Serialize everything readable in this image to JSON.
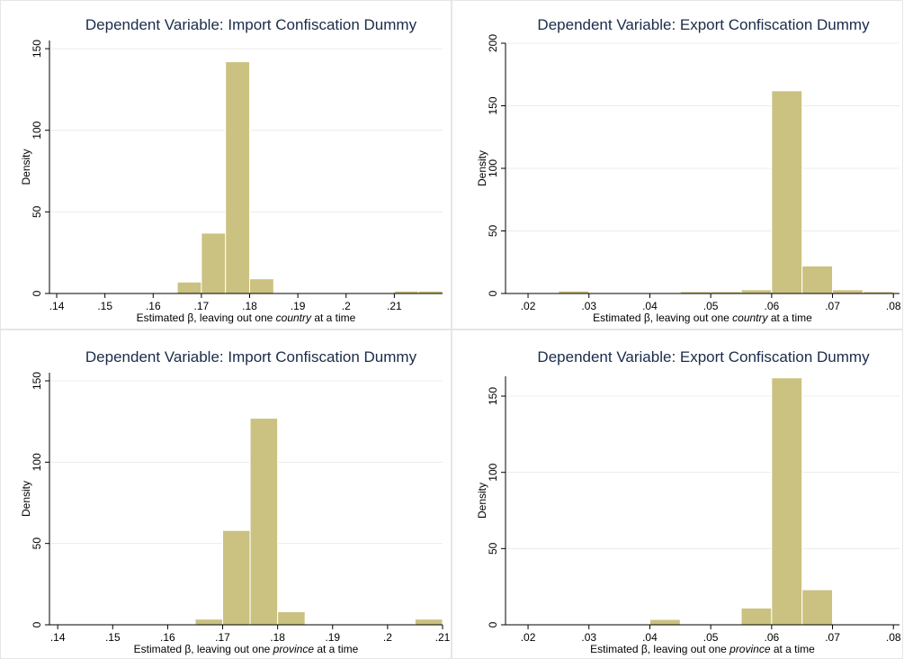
{
  "chart_data": [
    {
      "type": "histogram",
      "title": "Dependent Variable: Import Confiscation Dummy",
      "xlabel": [
        "Estimated β, leaving out one ",
        "country",
        " at a time"
      ],
      "ylabel": "Density",
      "bins": [
        0.165,
        0.17,
        0.175,
        0.18,
        0.185,
        0.19,
        0.195,
        0.2,
        0.205,
        0.21,
        0.215,
        0.22
      ],
      "values": [
        7,
        37,
        142,
        9,
        0,
        0,
        0,
        0,
        0,
        1.5,
        1.5
      ],
      "color": "#cbc180",
      "xlim": [
        0.1385,
        0.22
      ],
      "ylim": [
        0,
        155
      ],
      "xticks": [
        {
          "value": 0.14,
          "label": ".14"
        },
        {
          "value": 0.15,
          "label": ".15"
        },
        {
          "value": 0.16,
          "label": ".16"
        },
        {
          "value": 0.17,
          "label": ".17"
        },
        {
          "value": 0.18,
          "label": ".18"
        },
        {
          "value": 0.19,
          "label": ".19"
        },
        {
          "value": 0.2,
          "label": ".2"
        },
        {
          "value": 0.21,
          "label": ".21"
        }
      ],
      "yticks": [
        0,
        50,
        100,
        150
      ],
      "grid": true
    },
    {
      "type": "histogram",
      "title": "Dependent Variable: Export Confiscation Dummy",
      "xlabel": [
        "Estimated β, leaving out one ",
        "country",
        " at a time"
      ],
      "ylabel": "Density",
      "bins": [
        0.025,
        0.03,
        0.035,
        0.04,
        0.045,
        0.05,
        0.055,
        0.06,
        0.065,
        0.07,
        0.075,
        0.08
      ],
      "values": [
        2,
        0,
        0,
        0,
        1.5,
        1.5,
        3,
        162,
        22,
        3,
        1.5
      ],
      "color": "#cbc180",
      "xlim": [
        0.0163,
        0.081
      ],
      "ylim": [
        0,
        200
      ],
      "xticks": [
        {
          "value": 0.02,
          "label": ".02"
        },
        {
          "value": 0.03,
          "label": ".03"
        },
        {
          "value": 0.04,
          "label": ".04"
        },
        {
          "value": 0.05,
          "label": ".05"
        },
        {
          "value": 0.06,
          "label": ".06"
        },
        {
          "value": 0.07,
          "label": ".07"
        },
        {
          "value": 0.08,
          "label": ".08"
        }
      ],
      "yticks": [
        0,
        50,
        100,
        150,
        200
      ],
      "grid": true
    },
    {
      "type": "histogram",
      "title": "Dependent Variable: Import Confiscation Dummy",
      "xlabel": [
        "Estimated β, leaving out one ",
        "province",
        " at a time"
      ],
      "ylabel": "Density",
      "bins": [
        0.165,
        0.17,
        0.175,
        0.18,
        0.185,
        0.19,
        0.195,
        0.2,
        0.205,
        0.21
      ],
      "values": [
        3.5,
        58,
        127,
        8,
        0,
        0,
        0,
        0,
        3.5
      ],
      "color": "#cbc180",
      "xlim": [
        0.1385,
        0.21
      ],
      "ylim": [
        0,
        155
      ],
      "xticks": [
        {
          "value": 0.14,
          "label": ".14"
        },
        {
          "value": 0.15,
          "label": ".15"
        },
        {
          "value": 0.16,
          "label": ".16"
        },
        {
          "value": 0.17,
          "label": ".17"
        },
        {
          "value": 0.18,
          "label": ".18"
        },
        {
          "value": 0.19,
          "label": ".19"
        },
        {
          "value": 0.2,
          "label": ".2"
        },
        {
          "value": 0.21,
          "label": ".21"
        }
      ],
      "yticks": [
        0,
        50,
        100,
        150
      ],
      "grid": true
    },
    {
      "type": "histogram",
      "title": "Dependent Variable: Export Confiscation Dummy",
      "xlabel": [
        "Estimated β, leaving out one ",
        "province",
        " at a time"
      ],
      "ylabel": "Density",
      "bins": [
        0.04,
        0.045,
        0.05,
        0.055,
        0.06,
        0.065,
        0.07
      ],
      "values": [
        3.5,
        0,
        0,
        11,
        162,
        23
      ],
      "color": "#cbc180",
      "xlim": [
        0.0163,
        0.081
      ],
      "ylim": [
        0,
        163
      ],
      "xticks": [
        {
          "value": 0.02,
          "label": ".02"
        },
        {
          "value": 0.03,
          "label": ".03"
        },
        {
          "value": 0.04,
          "label": ".04"
        },
        {
          "value": 0.05,
          "label": ".05"
        },
        {
          "value": 0.06,
          "label": ".06"
        },
        {
          "value": 0.07,
          "label": ".07"
        },
        {
          "value": 0.08,
          "label": ".08"
        }
      ],
      "yticks": [
        0,
        50,
        100,
        150
      ],
      "grid": true
    }
  ]
}
